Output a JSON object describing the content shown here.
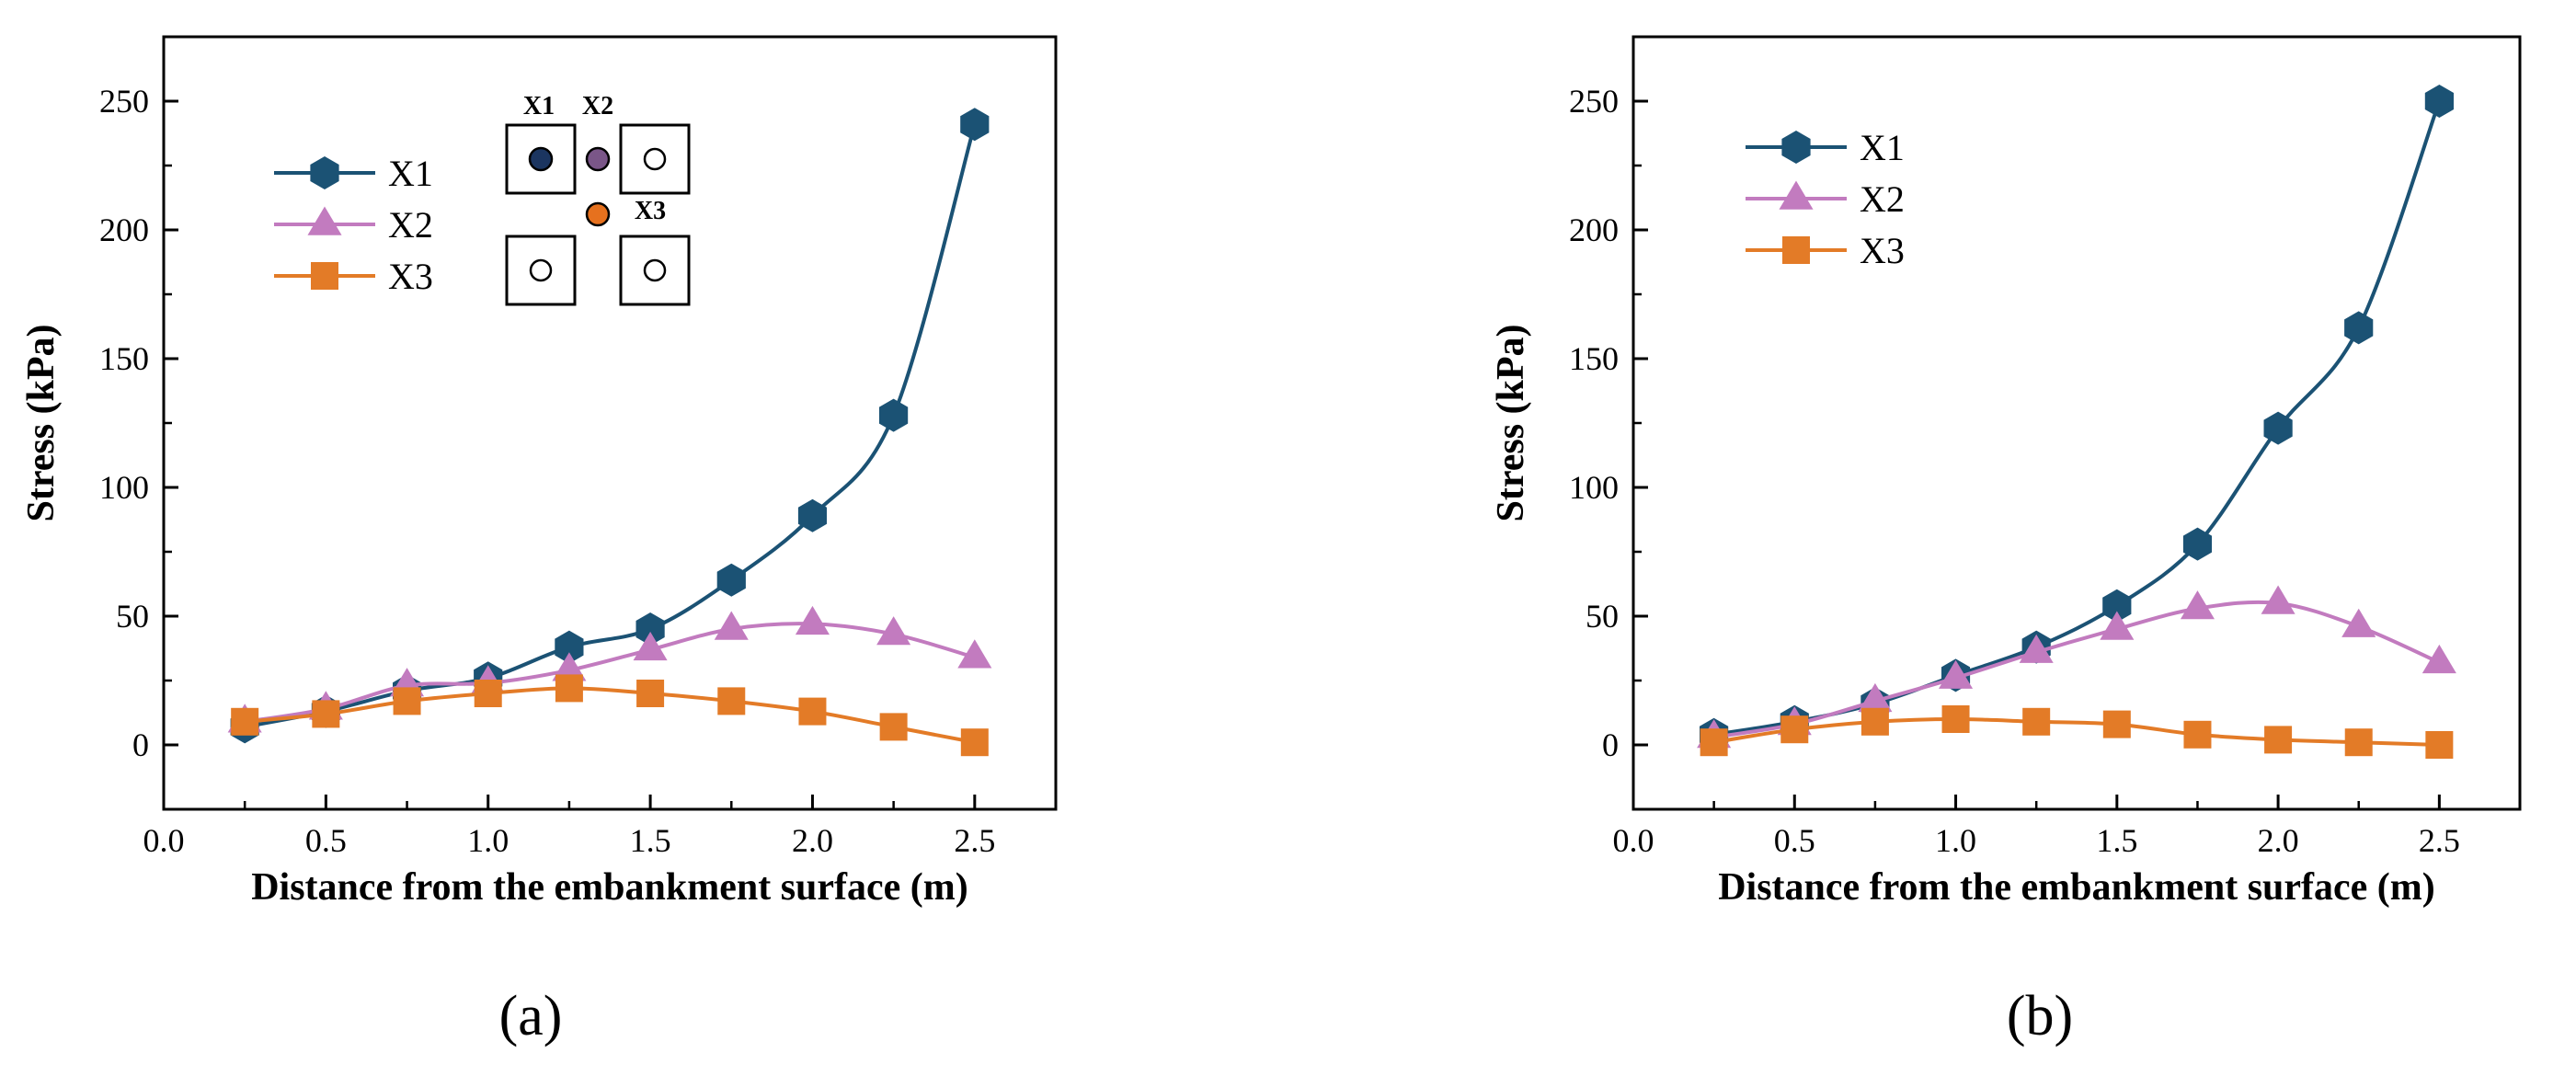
{
  "colors": {
    "X1": "#1b5274",
    "X2": "#c27bbf",
    "X3": "#e37b27",
    "axis": "#000000",
    "diagram_X1_fill": "#1b3560",
    "diagram_X2_fill": "#7a5688",
    "diagram_X3_fill": "#e6711e"
  },
  "chart_data": [
    {
      "type": "line",
      "caption": "(a)",
      "xlabel": "Distance from the embankment surface (m)",
      "ylabel": "Stress (kPa)",
      "xlim": [
        0.0,
        2.75
      ],
      "ylim": [
        -25,
        275
      ],
      "xticks": [
        0.0,
        0.5,
        1.0,
        1.5,
        2.0,
        2.5
      ],
      "xtick_labels": [
        "0.0",
        "0.5",
        "1.0",
        "1.5",
        "2.0",
        "2.5"
      ],
      "yticks": [
        0,
        50,
        100,
        150,
        200,
        250
      ],
      "ytick_labels": [
        "0",
        "50",
        "100",
        "150",
        "200",
        "250"
      ],
      "legend": {
        "position": "upper-left",
        "entries": [
          "X1",
          "X2",
          "X3"
        ]
      },
      "x": [
        0.25,
        0.5,
        0.75,
        1.0,
        1.25,
        1.5,
        1.75,
        2.0,
        2.25,
        2.5
      ],
      "series": [
        {
          "name": "X1",
          "marker": "hexagon",
          "values": [
            7,
            13,
            21,
            26,
            38,
            45,
            64,
            89,
            128,
            241
          ]
        },
        {
          "name": "X2",
          "marker": "triangle",
          "values": [
            9,
            14,
            23,
            24,
            29,
            37,
            45,
            47,
            43,
            34
          ]
        },
        {
          "name": "X3",
          "marker": "square",
          "values": [
            9,
            12,
            17,
            20,
            22,
            20,
            17,
            13,
            7,
            1
          ]
        }
      ],
      "inset_labels": {
        "X1": "X1",
        "X2": "X2",
        "X3": "X3"
      }
    },
    {
      "type": "line",
      "caption": "(b)",
      "xlabel": "Distance from the embankment surface (m)",
      "ylabel": "Stress (kPa)",
      "xlim": [
        0.0,
        2.75
      ],
      "ylim": [
        -25,
        275
      ],
      "xticks": [
        0.0,
        0.5,
        1.0,
        1.5,
        2.0,
        2.5
      ],
      "xtick_labels": [
        "0.0",
        "0.5",
        "1.0",
        "1.5",
        "2.0",
        "2.5"
      ],
      "yticks": [
        0,
        50,
        100,
        150,
        200,
        250
      ],
      "ytick_labels": [
        "0",
        "50",
        "100",
        "150",
        "200",
        "250"
      ],
      "legend": {
        "position": "upper-left",
        "entries": [
          "X1",
          "X2",
          "X3"
        ]
      },
      "x": [
        0.25,
        0.5,
        0.75,
        1.0,
        1.25,
        1.5,
        1.75,
        2.0,
        2.25,
        2.5
      ],
      "series": [
        {
          "name": "X1",
          "marker": "hexagon",
          "values": [
            4,
            9,
            16,
            27,
            38,
            54,
            78,
            123,
            162,
            250
          ]
        },
        {
          "name": "X2",
          "marker": "triangle",
          "values": [
            3,
            8,
            17,
            26,
            36,
            45,
            53,
            55,
            46,
            32
          ]
        },
        {
          "name": "X3",
          "marker": "square",
          "values": [
            1,
            6,
            9,
            10,
            9,
            8,
            4,
            2,
            1,
            0
          ]
        }
      ]
    }
  ]
}
